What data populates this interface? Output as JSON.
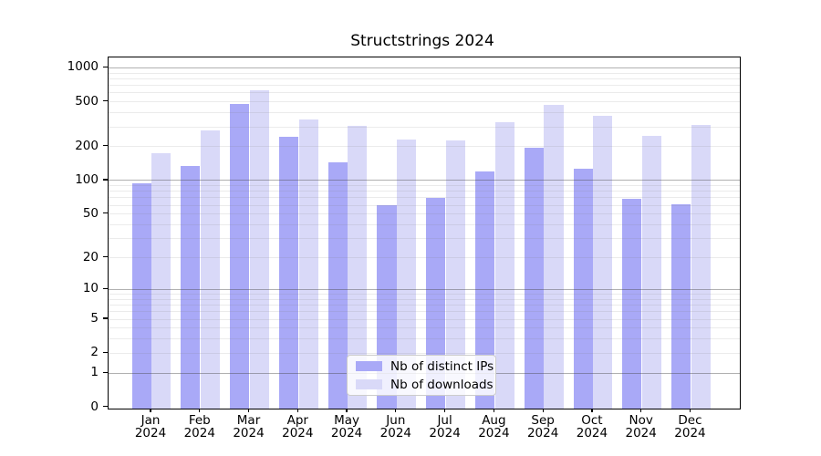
{
  "title": "Structstrings 2024",
  "chart_data": {
    "type": "bar",
    "title": "Structstrings 2024",
    "categories": [
      "Jan 2024",
      "Feb 2024",
      "Mar 2024",
      "Apr 2024",
      "May 2024",
      "Jun 2024",
      "Jul 2024",
      "Aug 2024",
      "Sep 2024",
      "Oct 2024",
      "Nov 2024",
      "Dec 2024"
    ],
    "series": [
      {
        "name": "Nb of distinct IPs",
        "color": "#a9a9f7",
        "values": [
          95,
          135,
          483,
          245,
          145,
          60,
          70,
          120,
          197,
          128,
          68,
          61
        ]
      },
      {
        "name": "Nb of downloads",
        "color": "#d9d9f8",
        "values": [
          174,
          281,
          638,
          351,
          307,
          233,
          229,
          328,
          473,
          376,
          248,
          312
        ]
      }
    ],
    "xlabel": "",
    "ylabel": "",
    "yscale": "log1p",
    "ylim": [
      0,
      1250
    ],
    "yticks": [
      0,
      1,
      2,
      5,
      10,
      20,
      50,
      100,
      200,
      500,
      1000
    ],
    "minor_gridlines": [
      2,
      3,
      4,
      5,
      6,
      7,
      8,
      9,
      20,
      30,
      40,
      50,
      60,
      70,
      80,
      90,
      200,
      300,
      400,
      500,
      600,
      700,
      800,
      900
    ],
    "major_gridlines": [
      1,
      10,
      100,
      1000
    ],
    "grid": true,
    "legend_position": "lower center"
  },
  "colors": {
    "distinct_ips": "#a9a9f7",
    "downloads": "#d9d9f8",
    "spine": "#000000",
    "text": "#000000",
    "legend_border": "#cccccc"
  }
}
